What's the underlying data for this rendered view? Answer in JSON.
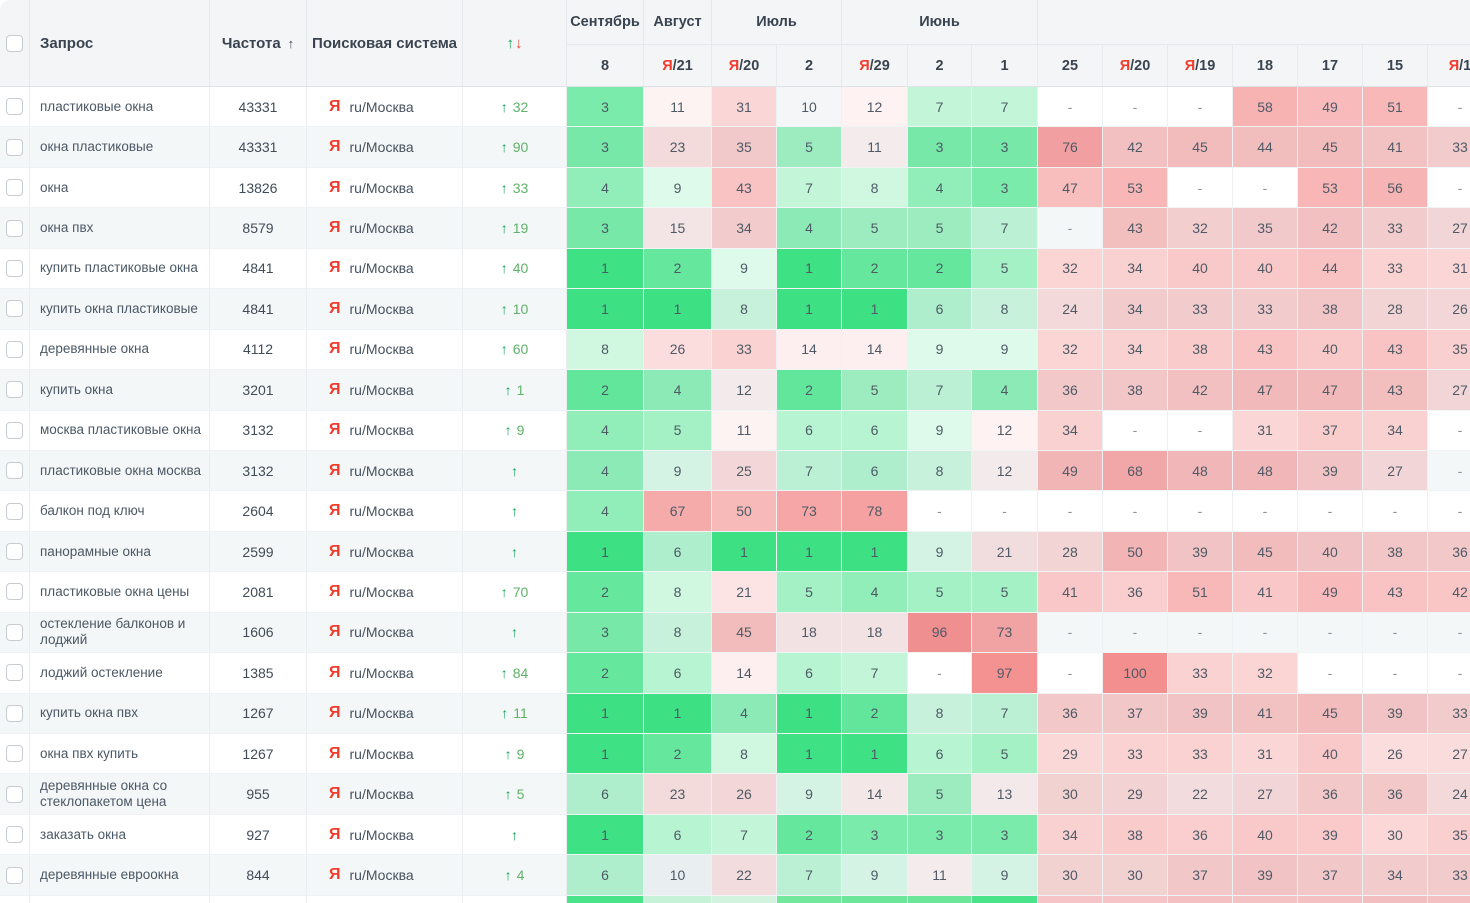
{
  "colors": {
    "position_green": "#23de73",
    "position_red": "#ee5858",
    "position_neutral": "#788796",
    "up_green": "#12a455",
    "down_red": "#e8453c",
    "yandex_red": "#f43a2a"
  },
  "ui": {
    "up_arrow": "↑"
  },
  "engine": {
    "icon": "Я",
    "label": "ru/Москва"
  },
  "header": {
    "columns": {
      "query": "Запрос",
      "frequency": "Частота",
      "frequency_sort_icon": "↑",
      "engine": "Поисковая система",
      "change_up": "↑",
      "change_down": "↓"
    },
    "month_groups": [
      {
        "label": "Сентябрь",
        "dates": [
          {
            "prefix": "",
            "day": "8"
          }
        ]
      },
      {
        "label": "Август",
        "dates": [
          {
            "prefix": "Я",
            "day": "21"
          }
        ]
      },
      {
        "label": "Июль",
        "dates": [
          {
            "prefix": "Я",
            "day": "20"
          },
          {
            "prefix": "",
            "day": "2"
          }
        ]
      },
      {
        "label": "Июнь",
        "dates": [
          {
            "prefix": "Я",
            "day": "29"
          },
          {
            "prefix": "",
            "day": "2"
          },
          {
            "prefix": "",
            "day": "1"
          }
        ]
      },
      {
        "label": "",
        "dates": [
          {
            "prefix": "",
            "day": "25"
          },
          {
            "prefix": "Я",
            "day": "20"
          },
          {
            "prefix": "Я",
            "day": "19"
          },
          {
            "prefix": "",
            "day": "18"
          },
          {
            "prefix": "",
            "day": "17"
          },
          {
            "prefix": "",
            "day": "15"
          },
          {
            "prefix": "Я",
            "day": "1"
          }
        ]
      }
    ]
  },
  "rows": [
    {
      "query": "пластиковые окна",
      "frequency": "43331",
      "change": "32",
      "positions": [
        "3",
        "11",
        "31",
        "10",
        "12",
        "7",
        "7",
        "-",
        "-",
        "-",
        "58",
        "49",
        "51",
        "-"
      ]
    },
    {
      "query": "окна пластиковые",
      "frequency": "43331",
      "change": "90",
      "positions": [
        "3",
        "23",
        "35",
        "5",
        "11",
        "3",
        "3",
        "76",
        "42",
        "45",
        "44",
        "45",
        "41",
        "33"
      ]
    },
    {
      "query": "окна",
      "frequency": "13826",
      "change": "33",
      "positions": [
        "4",
        "9",
        "43",
        "7",
        "8",
        "4",
        "3",
        "47",
        "53",
        "-",
        "-",
        "53",
        "56",
        "-"
      ]
    },
    {
      "query": "окна пвх",
      "frequency": "8579",
      "change": "19",
      "positions": [
        "3",
        "15",
        "34",
        "4",
        "5",
        "5",
        "7",
        "-",
        "43",
        "32",
        "35",
        "42",
        "33",
        "27"
      ]
    },
    {
      "query": "купить пластиковые окна",
      "frequency": "4841",
      "change": "40",
      "positions": [
        "1",
        "2",
        "9",
        "1",
        "2",
        "2",
        "5",
        "32",
        "34",
        "40",
        "40",
        "44",
        "33",
        "31"
      ]
    },
    {
      "query": "купить окна пластиковые",
      "frequency": "4841",
      "change": "10",
      "positions": [
        "1",
        "1",
        "8",
        "1",
        "1",
        "6",
        "8",
        "24",
        "34",
        "33",
        "33",
        "38",
        "28",
        "26"
      ]
    },
    {
      "query": "деревянные окна",
      "frequency": "4112",
      "change": "60",
      "positions": [
        "8",
        "26",
        "33",
        "14",
        "14",
        "9",
        "9",
        "32",
        "34",
        "38",
        "43",
        "40",
        "43",
        "35"
      ]
    },
    {
      "query": "купить окна",
      "frequency": "3201",
      "change": "1",
      "positions": [
        "2",
        "4",
        "12",
        "2",
        "5",
        "7",
        "4",
        "36",
        "38",
        "42",
        "47",
        "47",
        "43",
        "27"
      ]
    },
    {
      "query": "москва пластиковые окна",
      "frequency": "3132",
      "change": "9",
      "positions": [
        "4",
        "5",
        "11",
        "6",
        "6",
        "9",
        "12",
        "34",
        "-",
        "-",
        "31",
        "37",
        "34",
        "-"
      ]
    },
    {
      "query": "пластиковые окна москва",
      "frequency": "3132",
      "change": "",
      "positions": [
        "4",
        "9",
        "25",
        "7",
        "6",
        "8",
        "12",
        "49",
        "68",
        "48",
        "48",
        "39",
        "27",
        "-"
      ]
    },
    {
      "query": "балкон под ключ",
      "frequency": "2604",
      "change": "",
      "positions": [
        "4",
        "67",
        "50",
        "73",
        "78",
        "-",
        "-",
        "-",
        "-",
        "-",
        "-",
        "-",
        "-",
        "-"
      ]
    },
    {
      "query": "панорамные окна",
      "frequency": "2599",
      "change": "",
      "positions": [
        "1",
        "6",
        "1",
        "1",
        "1",
        "9",
        "21",
        "28",
        "50",
        "39",
        "45",
        "40",
        "38",
        "36"
      ]
    },
    {
      "query": "пластиковые окна цены",
      "frequency": "2081",
      "change": "70",
      "positions": [
        "2",
        "8",
        "21",
        "5",
        "4",
        "5",
        "5",
        "41",
        "36",
        "51",
        "41",
        "49",
        "43",
        "42"
      ]
    },
    {
      "query": "остекление балконов и лоджий",
      "frequency": "1606",
      "change": "",
      "positions": [
        "3",
        "8",
        "45",
        "18",
        "18",
        "96",
        "73",
        "-",
        "-",
        "-",
        "-",
        "-",
        "-",
        "-"
      ]
    },
    {
      "query": "лоджий остекление",
      "frequency": "1385",
      "change": "84",
      "positions": [
        "2",
        "6",
        "14",
        "6",
        "7",
        "-",
        "97",
        "-",
        "100",
        "33",
        "32",
        "-",
        "-",
        "-"
      ]
    },
    {
      "query": "купить окна пвх",
      "frequency": "1267",
      "change": "11",
      "positions": [
        "1",
        "1",
        "4",
        "1",
        "2",
        "8",
        "7",
        "36",
        "37",
        "39",
        "41",
        "45",
        "39",
        "33"
      ]
    },
    {
      "query": "окна пвх купить",
      "frequency": "1267",
      "change": "9",
      "positions": [
        "1",
        "2",
        "8",
        "1",
        "1",
        "6",
        "5",
        "29",
        "33",
        "33",
        "31",
        "40",
        "26",
        "27"
      ]
    },
    {
      "query": "деревянные окна со стеклопакетом цена",
      "frequency": "955",
      "change": "5",
      "positions": [
        "6",
        "23",
        "26",
        "9",
        "14",
        "5",
        "13",
        "30",
        "29",
        "22",
        "27",
        "36",
        "36",
        "24"
      ]
    },
    {
      "query": "заказать окна",
      "frequency": "927",
      "change": "",
      "positions": [
        "1",
        "6",
        "7",
        "2",
        "3",
        "3",
        "3",
        "34",
        "38",
        "36",
        "40",
        "39",
        "30",
        "35"
      ]
    },
    {
      "query": "деревянные евроокна",
      "frequency": "844",
      "change": "4",
      "positions": [
        "6",
        "10",
        "22",
        "7",
        "9",
        "11",
        "9",
        "30",
        "30",
        "37",
        "39",
        "37",
        "34",
        "33"
      ]
    }
  ],
  "clipped_row": {
    "colors": [
      "#49e389",
      "#c6f2d7",
      "#d2f4de",
      "#72e89d",
      "#6ce79a",
      "#6ce79a",
      "#49e389",
      "#f6c4c6",
      "#f6c4c6",
      "#f4c0c2",
      "#f5c2c4",
      "#f4c0c2",
      "#f3bec0",
      "#f4c0c2"
    ]
  }
}
